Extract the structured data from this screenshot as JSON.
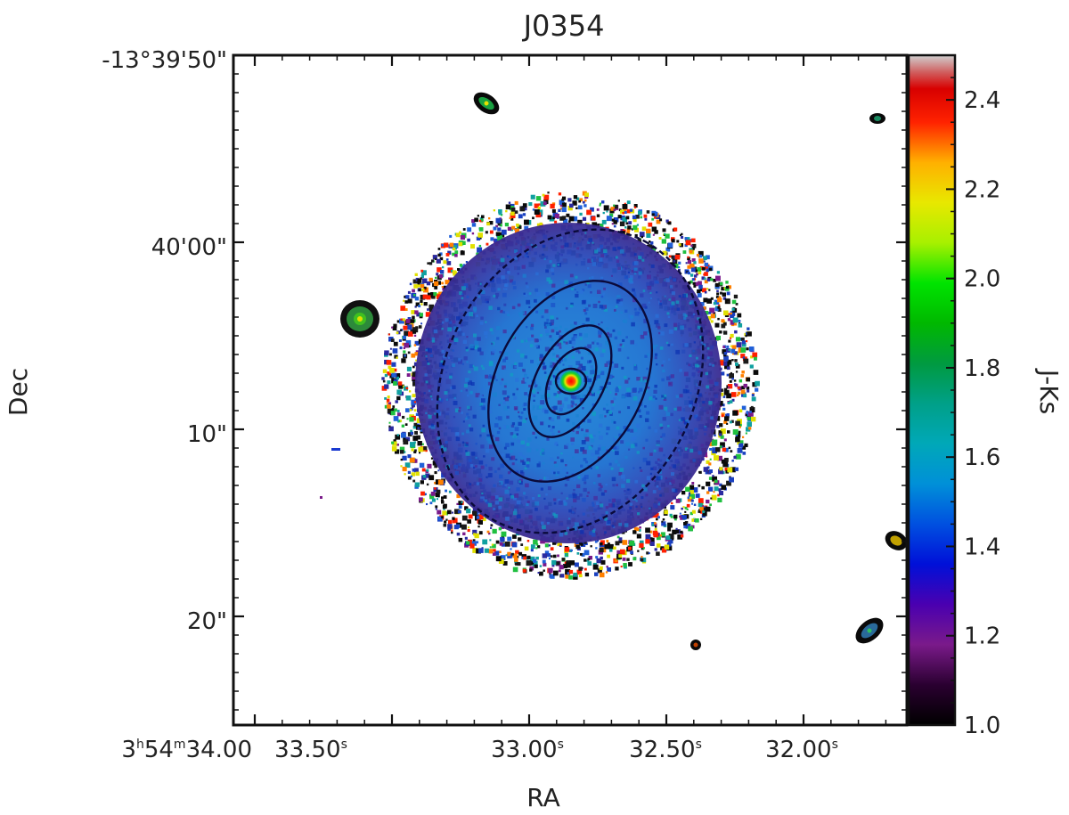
{
  "chart_data": {
    "type": "heatmap",
    "title": "J0354",
    "xlabel": "RA",
    "ylabel": "Dec",
    "x_ticks": [
      {
        "label_main": "3",
        "sup1": "h",
        "mid": "54",
        "sup2": "m",
        "tail": "34.00",
        "sup3": "s"
      },
      {
        "label_main": "33.50",
        "sup3": "s"
      },
      {
        "label_main": "33.00",
        "sup3": "s"
      },
      {
        "label_main": "32.50",
        "sup3": "s"
      },
      {
        "label_main": "32.00",
        "sup3": "s"
      }
    ],
    "y_ticks": [
      "-13°39'50\"",
      "40'00\"",
      "10\"",
      "20\""
    ],
    "colorbar": {
      "label": "J-Ks",
      "range": [
        1.0,
        2.5
      ],
      "ticks": [
        "1.0",
        "1.2",
        "1.4",
        "1.6",
        "1.8",
        "2.0",
        "2.2",
        "2.4"
      ],
      "colormap": "nipy_spectral-like"
    },
    "galaxy": {
      "typical_color_value": 1.4,
      "center_color_value": 2.4,
      "outer_ring_color_value": 1.2,
      "contour_levels": 5
    },
    "point_sources": 7,
    "colors": {
      "background": "#ffffff",
      "core": "#ff1a00",
      "disk": "#1f7fd6",
      "contour": "#0a0a3a"
    }
  }
}
